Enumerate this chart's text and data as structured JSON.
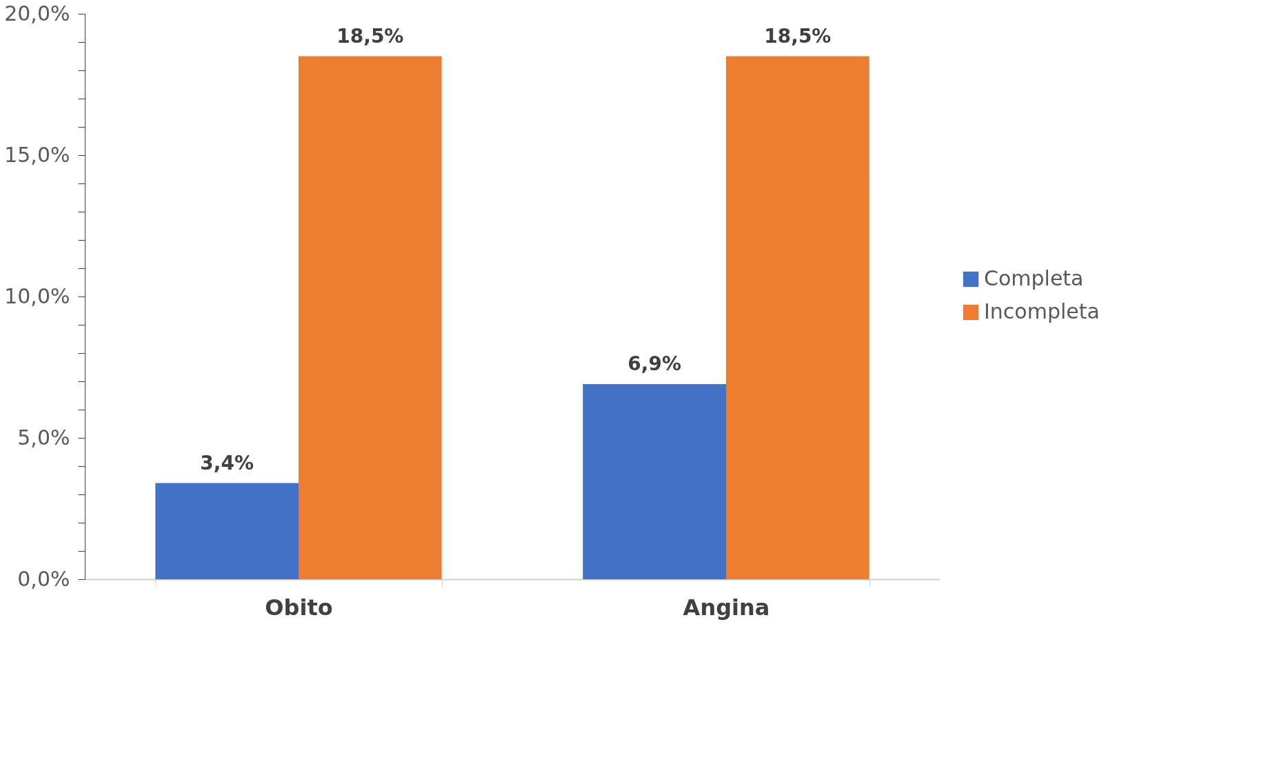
{
  "chart_data": {
    "type": "bar",
    "categories": [
      "Obito",
      "Angina"
    ],
    "series": [
      {
        "name": "Completa",
        "color": "#4472c4",
        "values": [
          3.4,
          6.9
        ],
        "value_labels": [
          "3,4%",
          "6,9%"
        ]
      },
      {
        "name": "Incompleta",
        "color": "#ed7d31",
        "values": [
          18.5,
          18.5
        ],
        "value_labels": [
          "18,5%",
          "18,5%"
        ]
      }
    ],
    "ylim": [
      0,
      20
    ],
    "yticks": [
      {
        "value": 0,
        "label": "0,0%"
      },
      {
        "value": 1,
        "label": null
      },
      {
        "value": 2,
        "label": null
      },
      {
        "value": 3,
        "label": null
      },
      {
        "value": 4,
        "label": null
      },
      {
        "value": 5,
        "label": "5,0%"
      },
      {
        "value": 6,
        "label": null
      },
      {
        "value": 7,
        "label": null
      },
      {
        "value": 8,
        "label": null
      },
      {
        "value": 9,
        "label": null
      },
      {
        "value": 10,
        "label": "10,0%"
      },
      {
        "value": 11,
        "label": null
      },
      {
        "value": 12,
        "label": null
      },
      {
        "value": 13,
        "label": null
      },
      {
        "value": 14,
        "label": null
      },
      {
        "value": 15,
        "label": "15,0%"
      },
      {
        "value": 16,
        "label": null
      },
      {
        "value": 17,
        "label": null
      },
      {
        "value": 18,
        "label": null
      },
      {
        "value": 19,
        "label": null
      },
      {
        "value": 20,
        "label": "20,0%"
      }
    ],
    "grid": false,
    "legend": "right"
  }
}
